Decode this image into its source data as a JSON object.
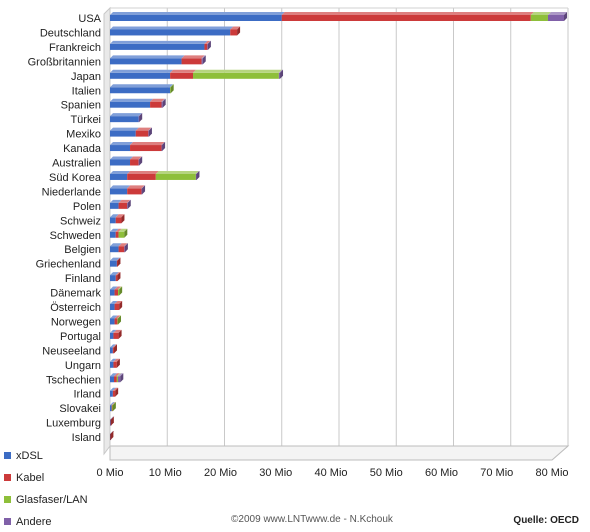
{
  "chart_data": {
    "type": "bar",
    "orientation": "horizontal",
    "stacked": true,
    "categories": [
      "USA",
      "Deutschland",
      "Frankreich",
      "Großbritannien",
      "Japan",
      "Italien",
      "Spanien",
      "Türkei",
      "Mexiko",
      "Kanada",
      "Australien",
      "Süd Korea",
      "Niederlande",
      "Polen",
      "Schweiz",
      "Schweden",
      "Belgien",
      "Griechenland",
      "Finland",
      "Dänemark",
      "Österreich",
      "Norwegen",
      "Portugal",
      "Neuseeland",
      "Ungarn",
      "Tschechien",
      "Irland",
      "Slovakei",
      "Luxemburg",
      "Island"
    ],
    "series": [
      {
        "name": "xDSL",
        "color": "#3c6cc4",
        "values": [
          30,
          21,
          16.5,
          12.5,
          10.5,
          10.5,
          7,
          5,
          4.5,
          3.5,
          3.5,
          3,
          3,
          1.5,
          1,
          1,
          1.5,
          1.2,
          1,
          0.8,
          0.8,
          0.8,
          0.6,
          0.5,
          0.6,
          0.7,
          0.5,
          0.3,
          0.1,
          0.05
        ]
      },
      {
        "name": "Kabel",
        "color": "#cc3a3a",
        "values": [
          43.5,
          1.2,
          0.5,
          3.5,
          4,
          0,
          2,
          0,
          2.2,
          5.5,
          1.5,
          5,
          2.5,
          1.5,
          1,
          0.5,
          1,
          0.1,
          0.3,
          0.6,
          0.8,
          0.5,
          0.9,
          0.2,
          0.6,
          0.5,
          0.4,
          0.1,
          0.05,
          0.02
        ]
      },
      {
        "name": "Glasfaser/LAN",
        "color": "#8ebf3a",
        "values": [
          3,
          0,
          0,
          0,
          15,
          0.1,
          0,
          0,
          0,
          0,
          0,
          7,
          0,
          0,
          0,
          1,
          0,
          0,
          0,
          0.2,
          0,
          0.1,
          0,
          0,
          0,
          0.2,
          0,
          0.1,
          0,
          0
        ]
      },
      {
        "name": "Andere",
        "color": "#8060a8",
        "values": [
          2.8,
          0,
          0.1,
          0.2,
          0.2,
          0,
          0.2,
          0.1,
          0.1,
          0.1,
          0.1,
          0.1,
          0.1,
          0.1,
          0,
          0,
          0.1,
          0,
          0,
          0,
          0,
          0,
          0,
          0,
          0,
          0.4,
          0,
          0,
          0,
          0
        ]
      }
    ],
    "x_ticks": [
      0,
      10,
      20,
      30,
      40,
      50,
      60,
      70,
      80
    ],
    "x_tick_labels": [
      "0 Mio",
      "10 Mio",
      "20 Mio",
      "30 Mio",
      "40 Mio",
      "50 Mio",
      "60 Mio",
      "70 Mio",
      "80 Mio"
    ],
    "xlim": [
      0,
      80
    ],
    "legend": {
      "position": "bottom-left",
      "entries": [
        "xDSL",
        "Kabel",
        "Glasfaser/LAN",
        "Andere"
      ]
    },
    "grid": true
  },
  "footer": {
    "credit": "©2009 www.LNTwww.de - N.Kchouk",
    "source": "Quelle: OECD"
  }
}
